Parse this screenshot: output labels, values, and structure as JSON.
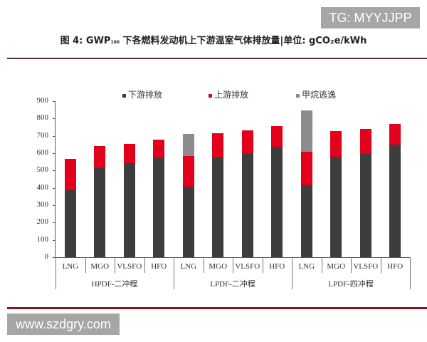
{
  "watermarks": {
    "top": "TG: MYYJJPP",
    "bottom": "www.szdgry.com"
  },
  "colors": {
    "downstream": "#3d3d3d",
    "upstream": "#e3001b",
    "methane_slip": "#8c8c8c",
    "rule": "#7a1c22"
  },
  "chart_data": {
    "type": "bar",
    "stacked": true,
    "title": "图 4: GWP100 下各燃料发动机上下游温室气体排放量|单位: gCO2e/kWh",
    "title_parts": {
      "prefix": "图 4: GWP",
      "sub": "100",
      "suffix": " 下各燃料发动机上下游温室气体排放量|单位: gCO₂e/kWh"
    },
    "xlabel": "",
    "ylabel": "",
    "ylim": [
      0,
      900
    ],
    "yticks": [
      0,
      100,
      200,
      300,
      400,
      500,
      600,
      700,
      800,
      900
    ],
    "grid": false,
    "legend_position": "top",
    "groups": [
      {
        "label": "HPDF-二冲程",
        "categories": [
          "LNG",
          "MGO",
          "VLSFO",
          "HFO"
        ]
      },
      {
        "label": "LPDF-二冲程",
        "categories": [
          "LNG",
          "MGO",
          "VLSFO",
          "HFO"
        ]
      },
      {
        "label": "LPDF-四冲程",
        "categories": [
          "LNG",
          "MGO",
          "VLSFO",
          "HFO"
        ]
      }
    ],
    "categories": [
      "LNG",
      "MGO",
      "VLSFO",
      "HFO",
      "LNG",
      "MGO",
      "VLSFO",
      "HFO",
      "LNG",
      "MGO",
      "VLSFO",
      "HFO"
    ],
    "series": [
      {
        "name": "下游排放",
        "color": "#3d3d3d",
        "values": [
          385,
          512,
          544,
          574,
          406,
          577,
          595,
          638,
          417,
          578,
          597,
          649
        ]
      },
      {
        "name": "上游排放",
        "color": "#e3001b",
        "values": [
          181,
          130,
          110,
          105,
          178,
          140,
          135,
          120,
          190,
          148,
          144,
          119
        ]
      },
      {
        "name": "甲烷逃逸",
        "color": "#8c8c8c",
        "values": [
          0,
          0,
          0,
          0,
          129,
          0,
          0,
          0,
          239,
          0,
          0,
          0
        ]
      }
    ],
    "totals": [
      566,
      642,
      654,
      679,
      713,
      717,
      730,
      758,
      846,
      726,
      741,
      768
    ]
  }
}
